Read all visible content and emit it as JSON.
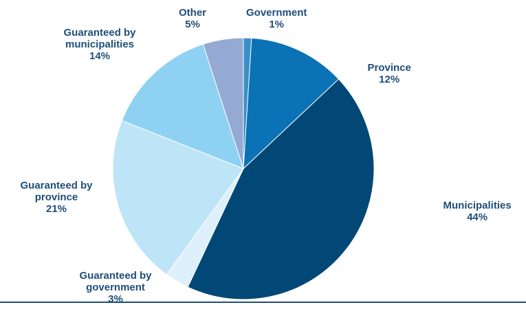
{
  "chart_data": {
    "type": "pie",
    "title": "",
    "start_angle_deg": 0,
    "direction": "clockwise",
    "slices": [
      {
        "name": "Government",
        "value": 1,
        "label_lines": [
          "Government"
        ],
        "pct_label": "1%",
        "color": "#3a8fc8"
      },
      {
        "name": "Province",
        "value": 12,
        "label_lines": [
          "Province"
        ],
        "pct_label": "12%",
        "color": "#0a72b5"
      },
      {
        "name": "Municipalities",
        "value": 44,
        "label_lines": [
          "Municipalities"
        ],
        "pct_label": "44%",
        "color": "#024876"
      },
      {
        "name": "Guaranteed by government",
        "value": 3,
        "label_lines": [
          "Guaranteed by",
          "government"
        ],
        "pct_label": "3%",
        "color": "#ddf0fc"
      },
      {
        "name": "Guaranteed by province",
        "value": 21,
        "label_lines": [
          "Guaranteed by",
          "province"
        ],
        "pct_label": "21%",
        "color": "#bee4f8"
      },
      {
        "name": "Guaranteed by municipalities",
        "value": 14,
        "label_lines": [
          "Guaranteed by",
          "municipalities"
        ],
        "pct_label": "14%",
        "color": "#8ed1f3"
      },
      {
        "name": "Other",
        "value": 5,
        "label_lines": [
          "Other"
        ],
        "pct_label": "5%",
        "color": "#94aad3"
      }
    ]
  }
}
